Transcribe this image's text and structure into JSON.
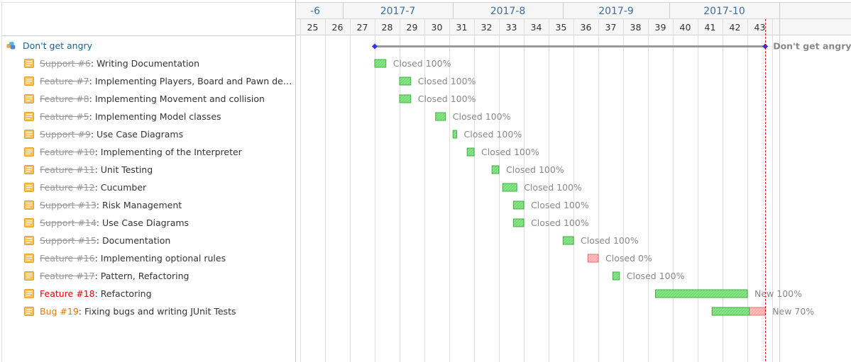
{
  "project": {
    "name": "Don't get angry",
    "label": "Don't get angry"
  },
  "issues": [
    {
      "tracker": "Support #6",
      "subject": "Writing Documentation",
      "closed": true,
      "status_label": "Closed 100%",
      "start_week": 28.0,
      "end_week": 28.45,
      "done": 100
    },
    {
      "tracker": "Feature #7",
      "subject": "Implementing Players, Board and Pawn dep...",
      "closed": true,
      "status_label": "Closed 100%",
      "start_week": 29.0,
      "end_week": 29.45,
      "done": 100
    },
    {
      "tracker": "Feature #8",
      "subject": "Implementing Movement and collision",
      "closed": true,
      "status_label": "Closed 100%",
      "start_week": 29.0,
      "end_week": 29.45,
      "done": 100
    },
    {
      "tracker": "Feature #5",
      "subject": "Implementing Model classes",
      "closed": true,
      "status_label": "Closed 100%",
      "start_week": 30.45,
      "end_week": 30.85,
      "done": 100
    },
    {
      "tracker": "Support #9",
      "subject": "Use Case Diagrams",
      "closed": true,
      "status_label": "Closed 100%",
      "start_week": 31.15,
      "end_week": 31.3,
      "done": 100
    },
    {
      "tracker": "Feature #10",
      "subject": "Implementing of the Interpreter",
      "closed": true,
      "status_label": "Closed 100%",
      "start_week": 31.72,
      "end_week": 32.0,
      "done": 100
    },
    {
      "tracker": "Feature #11",
      "subject": "Unit Testing",
      "closed": true,
      "status_label": "Closed 100%",
      "start_week": 32.72,
      "end_week": 33.0,
      "done": 100
    },
    {
      "tracker": "Feature #12",
      "subject": "Cucumber",
      "closed": true,
      "status_label": "Closed 100%",
      "start_week": 33.15,
      "end_week": 33.72,
      "done": 100
    },
    {
      "tracker": "Support #13",
      "subject": "Risk Management",
      "closed": true,
      "status_label": "Closed 100%",
      "start_week": 33.58,
      "end_week": 34.0,
      "done": 100
    },
    {
      "tracker": "Support #14",
      "subject": "Use Case Diagrams",
      "closed": true,
      "status_label": "Closed 100%",
      "start_week": 33.58,
      "end_week": 34.0,
      "done": 100
    },
    {
      "tracker": "Support #15",
      "subject": "Documentation",
      "closed": true,
      "status_label": "Closed 100%",
      "start_week": 35.58,
      "end_week": 36.0,
      "done": 100
    },
    {
      "tracker": "Feature #16",
      "subject": "Implementing optional rules",
      "closed": true,
      "status_label": "Closed 0%",
      "start_week": 36.58,
      "end_week": 37.0,
      "done": 0
    },
    {
      "tracker": "Feature #17",
      "subject": "Pattern, Refactoring",
      "closed": true,
      "status_label": "Closed 100%",
      "start_week": 37.58,
      "end_week": 37.85,
      "done": 100
    },
    {
      "tracker": "Feature #18",
      "subject": "Refactoring",
      "closed": false,
      "tracker_color": "#e00000",
      "status_label": "New 100%",
      "start_week": 39.3,
      "end_week": 43.0,
      "done": 100
    },
    {
      "tracker": "Bug #19",
      "subject": "Fixing bugs and writing JUnit Tests",
      "closed": false,
      "tracker_color": "#e07b00",
      "status_label": "New 70%",
      "start_week": 41.58,
      "end_week": 43.72,
      "done": 70
    }
  ],
  "timeline": {
    "months": [
      {
        "label": "-6"
      },
      {
        "label": "2017-7"
      },
      {
        "label": "2017-8"
      },
      {
        "label": "2017-9"
      },
      {
        "label": "2017-10"
      }
    ],
    "weeks": [
      25,
      26,
      27,
      28,
      29,
      30,
      31,
      32,
      33,
      34,
      35,
      36,
      37,
      38,
      39,
      40,
      41,
      42,
      43
    ],
    "project_start_week": 28.0,
    "project_end_week": 43.72,
    "today_week": 43.72
  },
  "colors": {
    "done": "#6ddb6d",
    "todo": "#ffaaaa",
    "project_line": "#999999",
    "milestone": "#3333ee",
    "today": "#cc0000",
    "grid": "#dddddd",
    "month_header": "#3b6fa3"
  }
}
